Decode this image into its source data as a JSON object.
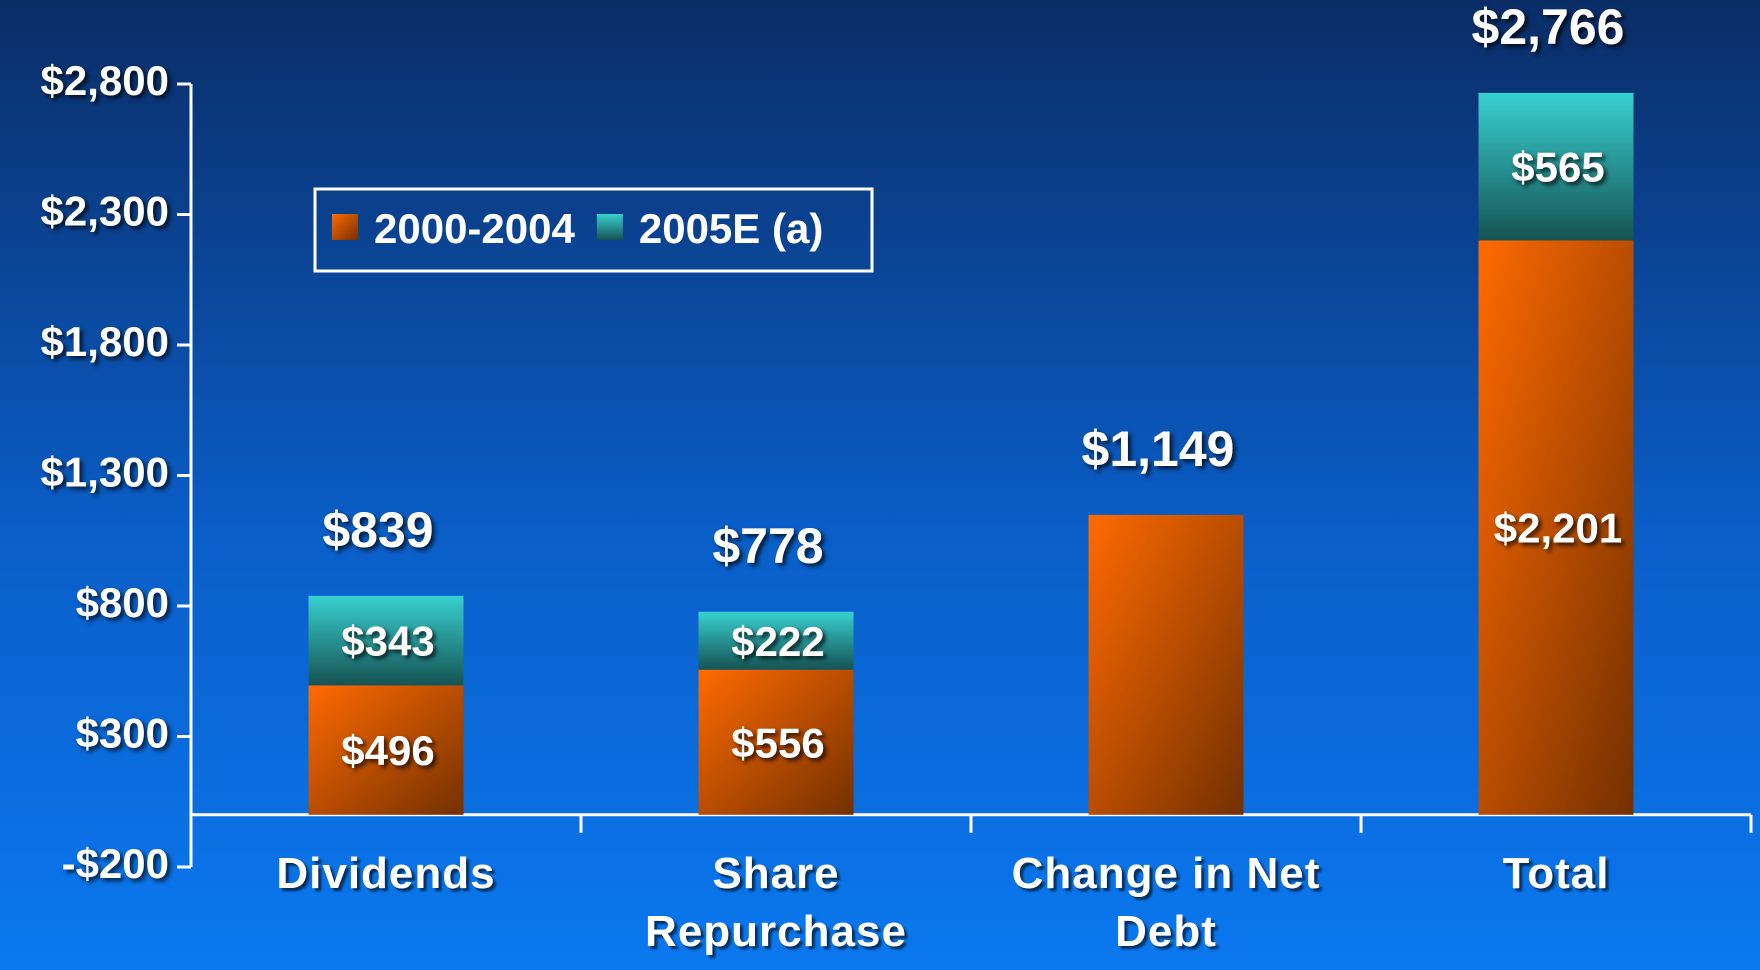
{
  "chart_data": {
    "type": "stacked_bar",
    "categories": [
      "Dividends",
      "Share Repurchase",
      "Change in Net Debt",
      "Total"
    ],
    "series": [
      {
        "name": "2000-2004",
        "color": "#ff6a00",
        "values": [
          496,
          556,
          1149,
          2201
        ],
        "value_labels": [
          "$496",
          "$556",
          null,
          "$2,201"
        ]
      },
      {
        "name": "2005E (a)",
        "color": "#38d0d0",
        "values": [
          343,
          222,
          null,
          565
        ],
        "value_labels": [
          "$343",
          "$222",
          null,
          "$565"
        ]
      }
    ],
    "totals": [
      839,
      778,
      1149,
      2766
    ],
    "total_labels": [
      "$839",
      "$778",
      "$1,149",
      "$2,766"
    ],
    "ylim": [
      -200,
      2800
    ],
    "yticks": [
      {
        "value": -200,
        "label": "-$200"
      },
      {
        "value": 300,
        "label": "$300"
      },
      {
        "value": 800,
        "label": "$800"
      },
      {
        "value": 1300,
        "label": "$1,300"
      },
      {
        "value": 1800,
        "label": "$1,800"
      },
      {
        "value": 2300,
        "label": "$2,300"
      },
      {
        "value": 2800,
        "label": "$2,800"
      }
    ],
    "legend": "top-left",
    "grid": false
  }
}
